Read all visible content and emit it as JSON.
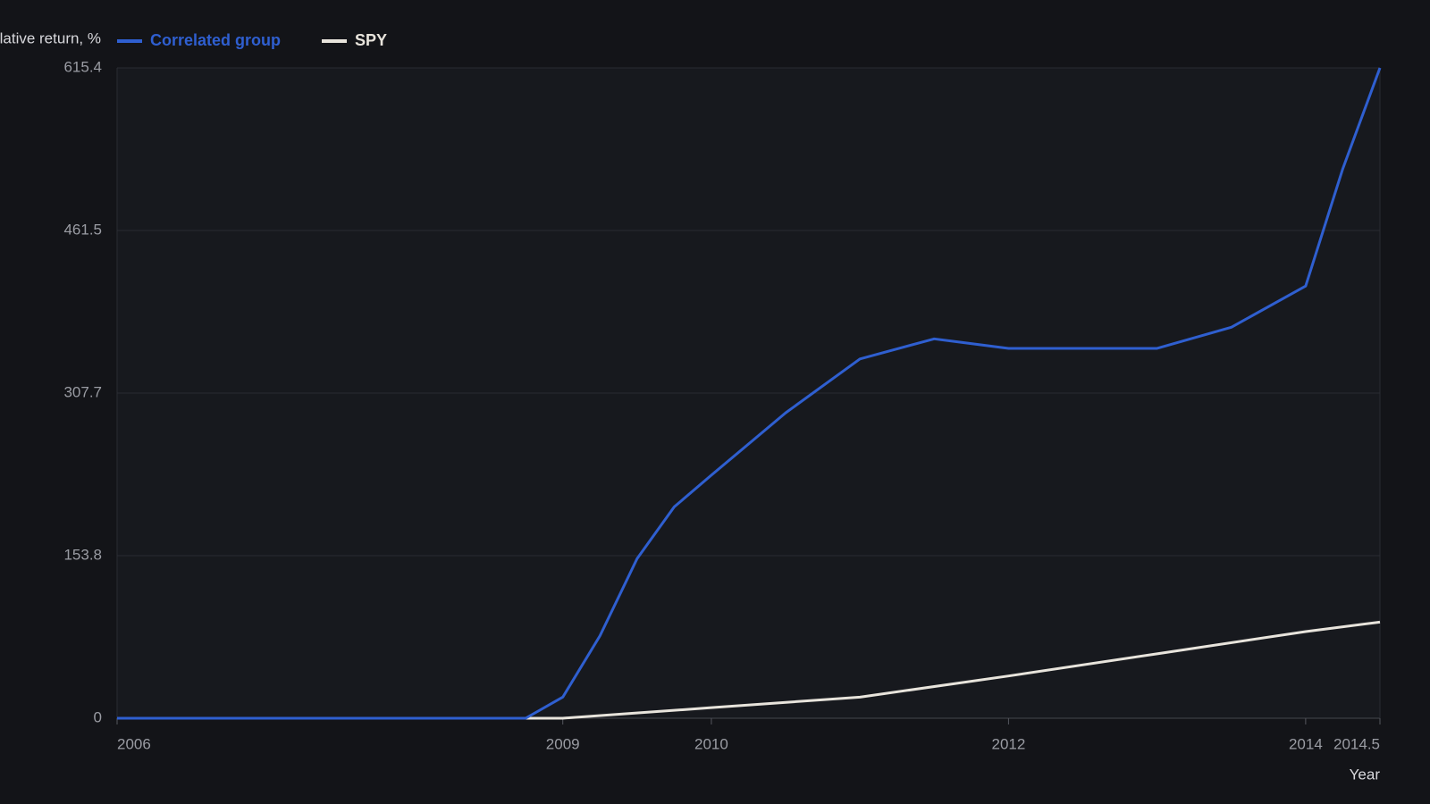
{
  "chart_data": {
    "type": "line",
    "y_label": "Cumulative return, %",
    "x_label": "Year",
    "xlim": [
      2006,
      2014.5
    ],
    "xticks": [
      2006,
      2009,
      2010,
      2012,
      2014,
      2014.5
    ],
    "ylim": [
      0,
      615.4
    ],
    "yticks": [
      0,
      153.8,
      307.7,
      461.5,
      615.4
    ],
    "grid": true,
    "legend": "top-left",
    "series": [
      {
        "name": "Correlated group",
        "color": "#2f5fd0",
        "x": [
          2006,
          2008.75,
          2009,
          2009.25,
          2009.5,
          2009.75,
          2010,
          2010.5,
          2011,
          2011.5,
          2012,
          2013,
          2013.5,
          2014,
          2014.25,
          2014.5
        ],
        "values": [
          0,
          0,
          20,
          78,
          151,
          200,
          230,
          289,
          340,
          359,
          350,
          350,
          370,
          409,
          520,
          615.4
        ]
      },
      {
        "name": "SPY",
        "color": "#e8e4dc",
        "x": [
          2006,
          2009,
          2010,
          2011,
          2012,
          2013,
          2014,
          2014.5
        ],
        "values": [
          0,
          0,
          10,
          20,
          40,
          61,
          82,
          91
        ]
      }
    ]
  }
}
